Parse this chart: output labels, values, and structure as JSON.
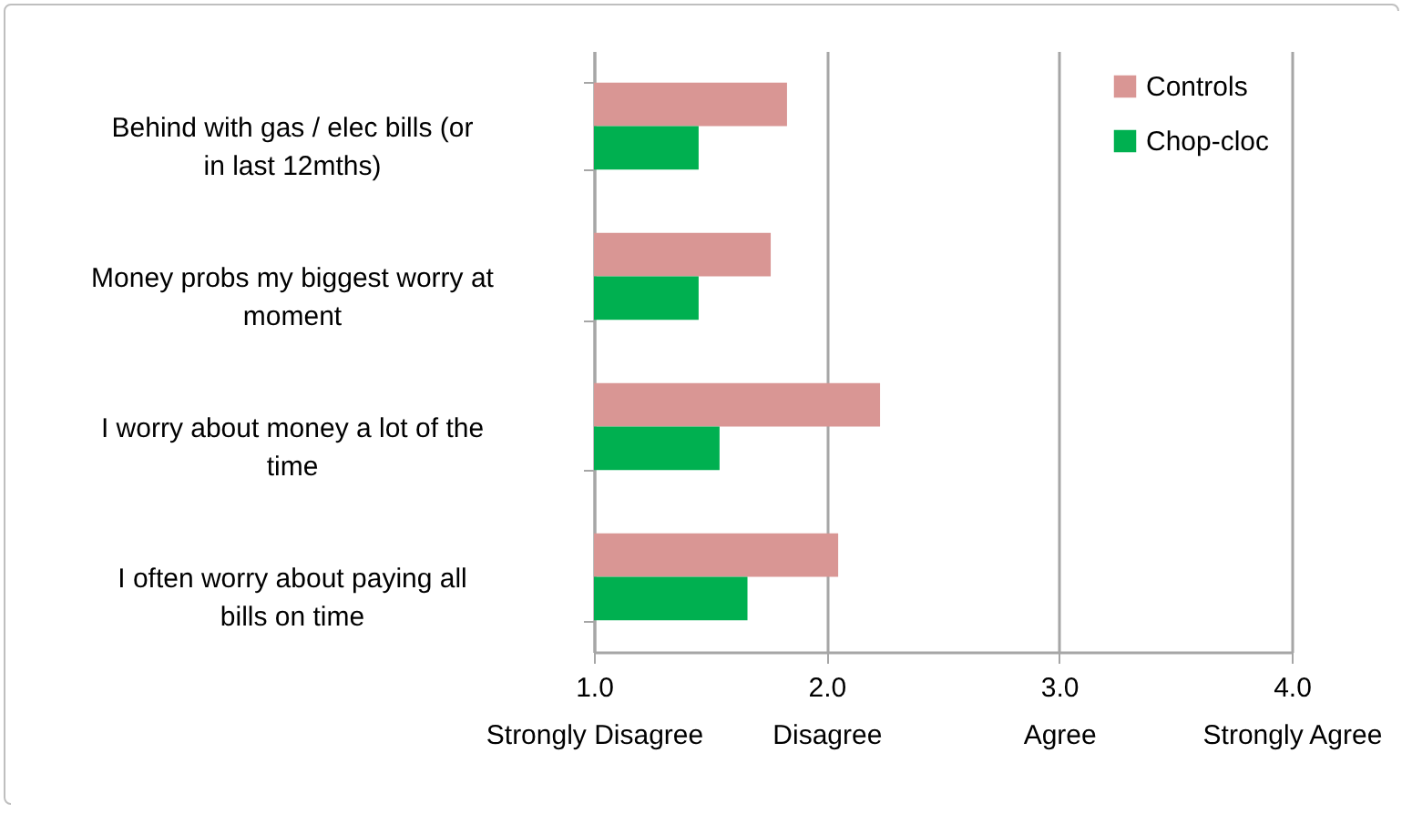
{
  "chart_data": {
    "type": "bar",
    "orientation": "horizontal",
    "categories": [
      "Behind with gas / elec bills (or in last 12mths)",
      "Money probs my biggest worry at moment",
      "I worry about money a lot of the time",
      "I often worry about paying all bills on time"
    ],
    "series": [
      {
        "name": "Controls",
        "color": "#d99694",
        "values": [
          1.83,
          1.76,
          2.23,
          2.05
        ]
      },
      {
        "name": "Chop-cloc",
        "color": "#00b050",
        "values": [
          1.45,
          1.45,
          1.54,
          1.66
        ]
      }
    ],
    "xlim": [
      1,
      4
    ],
    "xticks": [
      {
        "value": 1,
        "label": "1.0\nStrongly Disagree"
      },
      {
        "value": 2,
        "label": "2.0\nDisagree"
      },
      {
        "value": 3,
        "label": "3.0\nAgree"
      },
      {
        "value": 4,
        "label": "4.0\nStrongly Agree"
      }
    ],
    "grid": "x",
    "legend": "top right"
  }
}
